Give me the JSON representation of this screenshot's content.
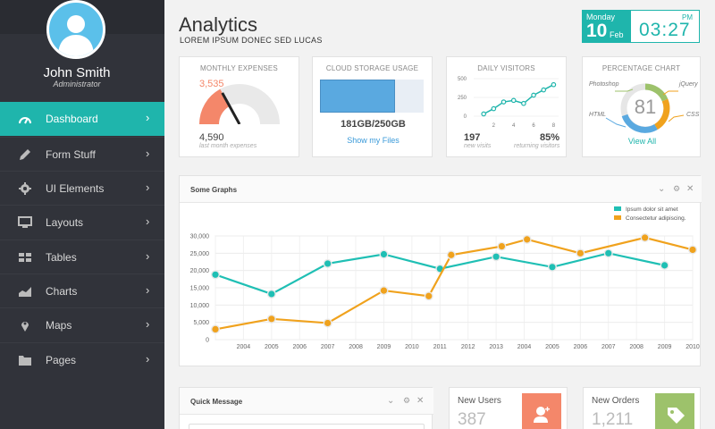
{
  "user": {
    "name": "John Smith",
    "role": "Administrator"
  },
  "nav": [
    {
      "label": "Dashboard",
      "icon": "gauge-icon",
      "active": true
    },
    {
      "label": "Form Stuff",
      "icon": "pencil-icon"
    },
    {
      "label": "UI Elements",
      "icon": "gear-icon"
    },
    {
      "label": "Layouts",
      "icon": "monitor-icon"
    },
    {
      "label": "Tables",
      "icon": "grid-icon"
    },
    {
      "label": "Charts",
      "icon": "area-chart-icon"
    },
    {
      "label": "Maps",
      "icon": "map-pin-icon"
    },
    {
      "label": "Pages",
      "icon": "folder-icon"
    }
  ],
  "nav_chevron": "›",
  "header": {
    "title": "Analytics",
    "subtitle": "LOREM IPSUM DONEC SED LUCAS"
  },
  "date": {
    "weekday": "Monday",
    "day": "10",
    "month": "Feb"
  },
  "time": {
    "value": "03:27",
    "ampm": "PM"
  },
  "colors": {
    "accent": "#1fb5ac",
    "sidebar": "#31333a",
    "orange": "#f0a21d",
    "coral": "#f4876a",
    "green": "#9dc26b",
    "blue": "#5aa9e0"
  },
  "widgets": {
    "expenses": {
      "title": "MONTHLY EXPENSES",
      "gauge_value": "3,535",
      "total": "4,590",
      "caption": "last month expenses",
      "fill_fraction": 0.34
    },
    "storage": {
      "title": "CLOUD STORAGE USAGE",
      "usage": "181GB/250GB",
      "link": "Show my Files",
      "used_fraction": 0.724
    },
    "visitors": {
      "title": "DAILY VISITORS",
      "new_value": "197",
      "new_caption": "new visits",
      "returning_value": "85%",
      "returning_caption": "returning visitors",
      "y_ticks": [
        "500",
        "250",
        "0"
      ],
      "x_ticks": [
        "2",
        "4",
        "6",
        "8"
      ],
      "points": [
        [
          1,
          30
        ],
        [
          2,
          100
        ],
        [
          3,
          190
        ],
        [
          4,
          210
        ],
        [
          5,
          170
        ],
        [
          6,
          280
        ],
        [
          7,
          350
        ],
        [
          8,
          420
        ]
      ],
      "ymax": 500,
      "xmax": 8.5
    },
    "percentage": {
      "title": "PERCENTAGE CHART",
      "center": "81",
      "labels": [
        "Photoshop",
        "jQuery",
        "HTML",
        "CSS"
      ],
      "link": "View All"
    }
  },
  "graph": {
    "title": "Some Graphs"
  },
  "chart_data": {
    "type": "line",
    "x": [
      2003,
      2004,
      2005,
      2006,
      2007,
      2008,
      2009,
      2010,
      2011,
      2012,
      2013,
      2014,
      2015,
      2016,
      2017,
      2018,
      2019,
      2020
    ],
    "x_tick_labels": [
      "2004",
      "2005",
      "2006",
      "2007",
      "2008",
      "2009",
      "2010",
      "2011",
      "2012",
      "2013",
      "2004",
      "2005",
      "2006",
      "2007",
      "2008",
      "2009",
      "2010"
    ],
    "y_tick_labels": [
      "30,000",
      "25,000",
      "20,000",
      "15,000",
      "10,000",
      "5,000",
      "0"
    ],
    "ylim": [
      0,
      30000
    ],
    "grid": true,
    "legend_position": "top-right",
    "series": [
      {
        "name": "Ipsum dolor sit amet",
        "color": "#1fbfb4",
        "points": [
          [
            2003,
            18800
          ],
          [
            2005,
            13200
          ],
          [
            2007,
            22000
          ],
          [
            2009,
            24700
          ],
          [
            2011,
            20500
          ],
          [
            2013,
            24000
          ],
          [
            2015,
            21000
          ],
          [
            2017,
            25000
          ],
          [
            2019,
            21500
          ]
        ]
      },
      {
        "name": "Consectetur adipiscing.",
        "color": "#f0a21d",
        "points": [
          [
            2003,
            3000
          ],
          [
            2005,
            6000
          ],
          [
            2007,
            4800
          ],
          [
            2009,
            14200
          ],
          [
            2010.6,
            12600
          ],
          [
            2011.4,
            24500
          ],
          [
            2013.2,
            27000
          ],
          [
            2014.1,
            29000
          ],
          [
            2016,
            25000
          ],
          [
            2018.3,
            29500
          ],
          [
            2020,
            26000
          ]
        ]
      }
    ]
  },
  "quick_message": {
    "title": "Quick Message"
  },
  "stats": [
    {
      "label": "New Users",
      "value": "387",
      "icon": "add-user-icon"
    },
    {
      "label": "New Orders",
      "value": "1,211",
      "icon": "tag-icon"
    }
  ],
  "panel_controls": {
    "collapse": "⌄",
    "settings": "⚙",
    "close": "✕"
  }
}
